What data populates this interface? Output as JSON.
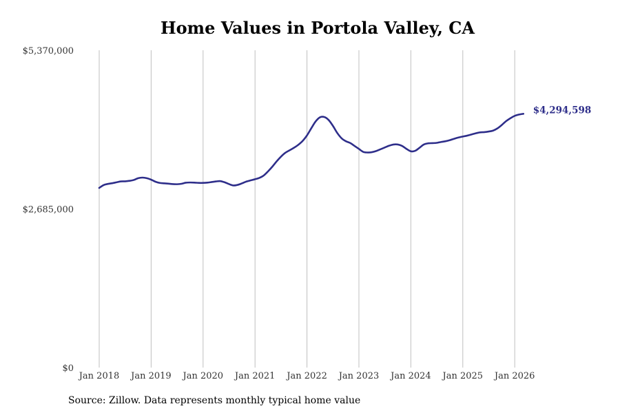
{
  "chart_data": {
    "type": "line",
    "title": "Home Values in Portola Valley, CA",
    "xlabel": "",
    "ylabel": "",
    "x_tick_labels": [
      "Jan 2018",
      "Jan 2019",
      "Jan 2020",
      "Jan 2021",
      "Jan 2022",
      "Jan 2023",
      "Jan 2024",
      "Jan 2025",
      "Jan 2026"
    ],
    "y_tick_labels": [
      "$5,370,000",
      "$2,685,000",
      "$0"
    ],
    "y_ticks": [
      5370000,
      2685000,
      0
    ],
    "ylim": [
      0,
      5370000
    ],
    "xlim": [
      "2018-01",
      "2026-05"
    ],
    "grid": "vertical",
    "series": [
      {
        "color": "#2e2e8a",
        "end_label": "$4,294,598",
        "points": [
          [
            "2018-01",
            3040000
          ],
          [
            "2018-02",
            3088000
          ],
          [
            "2018-03",
            3108000
          ],
          [
            "2018-04",
            3120000
          ],
          [
            "2018-05",
            3135000
          ],
          [
            "2018-06",
            3150000
          ],
          [
            "2018-07",
            3152000
          ],
          [
            "2018-08",
            3160000
          ],
          [
            "2018-09",
            3175000
          ],
          [
            "2018-10",
            3205000
          ],
          [
            "2018-11",
            3215000
          ],
          [
            "2018-12",
            3205000
          ],
          [
            "2019-01",
            3180000
          ],
          [
            "2019-02",
            3145000
          ],
          [
            "2019-03",
            3125000
          ],
          [
            "2019-04",
            3118000
          ],
          [
            "2019-05",
            3112000
          ],
          [
            "2019-06",
            3105000
          ],
          [
            "2019-07",
            3103000
          ],
          [
            "2019-08",
            3110000
          ],
          [
            "2019-09",
            3128000
          ],
          [
            "2019-10",
            3132000
          ],
          [
            "2019-11",
            3130000
          ],
          [
            "2019-12",
            3125000
          ],
          [
            "2020-01",
            3125000
          ],
          [
            "2020-02",
            3130000
          ],
          [
            "2020-03",
            3140000
          ],
          [
            "2020-04",
            3150000
          ],
          [
            "2020-05",
            3155000
          ],
          [
            "2020-06",
            3135000
          ],
          [
            "2020-07",
            3105000
          ],
          [
            "2020-08",
            3082000
          ],
          [
            "2020-09",
            3092000
          ],
          [
            "2020-10",
            3118000
          ],
          [
            "2020-11",
            3148000
          ],
          [
            "2020-12",
            3168000
          ],
          [
            "2021-01",
            3188000
          ],
          [
            "2021-02",
            3210000
          ],
          [
            "2021-03",
            3250000
          ],
          [
            "2021-04",
            3320000
          ],
          [
            "2021-05",
            3400000
          ],
          [
            "2021-06",
            3490000
          ],
          [
            "2021-07",
            3570000
          ],
          [
            "2021-08",
            3635000
          ],
          [
            "2021-09",
            3678000
          ],
          [
            "2021-10",
            3720000
          ],
          [
            "2021-11",
            3770000
          ],
          [
            "2021-12",
            3835000
          ],
          [
            "2022-01",
            3928000
          ],
          [
            "2022-02",
            4050000
          ],
          [
            "2022-03",
            4165000
          ],
          [
            "2022-04",
            4235000
          ],
          [
            "2022-05",
            4240000
          ],
          [
            "2022-06",
            4190000
          ],
          [
            "2022-07",
            4090000
          ],
          [
            "2022-08",
            3970000
          ],
          [
            "2022-09",
            3880000
          ],
          [
            "2022-10",
            3830000
          ],
          [
            "2022-11",
            3800000
          ],
          [
            "2022-12",
            3750000
          ],
          [
            "2023-01",
            3700000
          ],
          [
            "2023-02",
            3650000
          ],
          [
            "2023-03",
            3640000
          ],
          [
            "2023-04",
            3645000
          ],
          [
            "2023-05",
            3665000
          ],
          [
            "2023-06",
            3695000
          ],
          [
            "2023-07",
            3725000
          ],
          [
            "2023-08",
            3755000
          ],
          [
            "2023-09",
            3775000
          ],
          [
            "2023-10",
            3775000
          ],
          [
            "2023-11",
            3750000
          ],
          [
            "2023-12",
            3700000
          ],
          [
            "2024-01",
            3660000
          ],
          [
            "2024-02",
            3668000
          ],
          [
            "2024-03",
            3720000
          ],
          [
            "2024-04",
            3775000
          ],
          [
            "2024-05",
            3795000
          ],
          [
            "2024-06",
            3798000
          ],
          [
            "2024-07",
            3803000
          ],
          [
            "2024-08",
            3818000
          ],
          [
            "2024-09",
            3830000
          ],
          [
            "2024-10",
            3848000
          ],
          [
            "2024-11",
            3872000
          ],
          [
            "2024-12",
            3893000
          ],
          [
            "2025-01",
            3910000
          ],
          [
            "2025-02",
            3925000
          ],
          [
            "2025-03",
            3945000
          ],
          [
            "2025-04",
            3965000
          ],
          [
            "2025-05",
            3980000
          ],
          [
            "2025-06",
            3985000
          ],
          [
            "2025-07",
            3995000
          ],
          [
            "2025-08",
            4010000
          ],
          [
            "2025-09",
            4048000
          ],
          [
            "2025-10",
            4105000
          ],
          [
            "2025-11",
            4170000
          ],
          [
            "2025-12",
            4220000
          ],
          [
            "2026-01",
            4260000
          ],
          [
            "2026-02",
            4282000
          ],
          [
            "2026-03",
            4294598
          ]
        ]
      }
    ]
  },
  "source": "Source: Zillow. Data represents monthly typical home value",
  "colors": {
    "line": "#2e2e8a",
    "grid": "#bfbfbf",
    "text": "#333333"
  }
}
